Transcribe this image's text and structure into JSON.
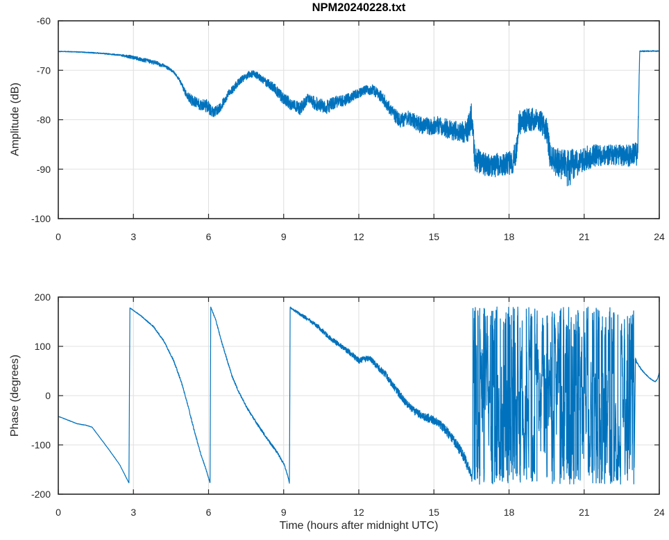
{
  "figure": {
    "title": "NPM20240228.txt"
  },
  "colors": {
    "line": "#0072BD",
    "grid": "#e0e0e0",
    "axis": "#262626",
    "tick_label": "#262626",
    "title": "#000000",
    "background": "#ffffff"
  },
  "chart_data": [
    {
      "type": "line",
      "title": "NPM20240228.txt",
      "xlabel": "",
      "ylabel": "Amplitude (dB)",
      "xlim": [
        0,
        24
      ],
      "ylim": [
        -100,
        -60
      ],
      "xticks": [
        0,
        3,
        6,
        9,
        12,
        15,
        18,
        21,
        24
      ],
      "xtick_labels": [
        "0",
        "3",
        "6",
        "9",
        "12",
        "15",
        "18",
        "21",
        "24"
      ],
      "yticks": [
        -100,
        -90,
        -80,
        -70,
        -60
      ],
      "ytick_labels": [
        "-100",
        "-90",
        "-80",
        "-70",
        "-60"
      ],
      "grid": true,
      "legend": null,
      "x_units": "hours after midnight UTC",
      "series": [
        {
          "name": "amplitude",
          "color": "#0072BD",
          "seed": 982451653,
          "sample_step_hours": 0.006,
          "segments": [
            {
              "kind": "noisy_keys",
              "keys": [
                [
                  0.0,
                  -66.2,
                  0.07
                ],
                [
                  0.6,
                  -66.25,
                  0.07
                ],
                [
                  1.2,
                  -66.4,
                  0.09
                ],
                [
                  1.8,
                  -66.6,
                  0.1
                ],
                [
                  2.4,
                  -66.9,
                  0.15
                ],
                [
                  2.9,
                  -67.3,
                  0.35
                ],
                [
                  3.4,
                  -67.9,
                  0.4
                ],
                [
                  3.9,
                  -68.5,
                  0.45
                ],
                [
                  4.3,
                  -69.3,
                  0.35
                ],
                [
                  4.6,
                  -70.3,
                  0.25
                ],
                [
                  4.85,
                  -72.0,
                  0.3
                ],
                [
                  5.1,
                  -74.8,
                  0.7
                ],
                [
                  5.35,
                  -76.2,
                  1.1
                ],
                [
                  5.65,
                  -76.8,
                  1.2
                ],
                [
                  5.95,
                  -77.2,
                  1.4
                ],
                [
                  6.2,
                  -78.6,
                  1.0
                ],
                [
                  6.45,
                  -77.6,
                  0.9
                ],
                [
                  6.8,
                  -74.8,
                  0.8
                ],
                [
                  7.2,
                  -72.4,
                  0.8
                ],
                [
                  7.6,
                  -70.9,
                  0.7
                ],
                [
                  7.85,
                  -70.7,
                  0.7
                ],
                [
                  8.2,
                  -72.1,
                  0.8
                ],
                [
                  8.6,
                  -73.4,
                  1.0
                ],
                [
                  9.0,
                  -75.8,
                  1.2
                ],
                [
                  9.35,
                  -77.0,
                  1.3
                ],
                [
                  9.65,
                  -77.8,
                  1.3
                ],
                [
                  9.95,
                  -75.9,
                  1.1
                ],
                [
                  10.35,
                  -76.9,
                  1.4
                ],
                [
                  10.75,
                  -77.4,
                  1.4
                ],
                [
                  11.05,
                  -76.4,
                  1.2
                ],
                [
                  11.45,
                  -76.1,
                  1.1
                ],
                [
                  11.85,
                  -74.9,
                  1.0
                ],
                [
                  12.25,
                  -74.1,
                  1.0
                ],
                [
                  12.55,
                  -73.9,
                  1.0
                ],
                [
                  12.95,
                  -75.6,
                  1.2
                ],
                [
                  13.35,
                  -78.6,
                  1.4
                ],
                [
                  13.65,
                  -80.2,
                  1.4
                ],
                [
                  14.05,
                  -79.6,
                  1.5
                ],
                [
                  14.45,
                  -81.1,
                  1.7
                ],
                [
                  14.85,
                  -81.4,
                  1.8
                ],
                [
                  15.25,
                  -81.1,
                  1.9
                ],
                [
                  15.65,
                  -82.1,
                  2.0
                ],
                [
                  16.05,
                  -82.6,
                  2.1
                ],
                [
                  16.35,
                  -82.1,
                  2.4
                ],
                [
                  16.5,
                  -79.8,
                  3.6
                ],
                [
                  16.65,
                  -88.2,
                  2.6
                ],
                [
                  17.1,
                  -89.1,
                  2.4
                ],
                [
                  17.7,
                  -89.2,
                  2.4
                ],
                [
                  18.15,
                  -88.5,
                  2.4
                ],
                [
                  18.28,
                  -86.5,
                  2.6
                ],
                [
                  18.4,
                  -80.6,
                  2.4
                ],
                [
                  18.9,
                  -79.9,
                  2.4
                ],
                [
                  19.25,
                  -80.3,
                  2.4
                ],
                [
                  19.5,
                  -81.8,
                  2.6
                ],
                [
                  19.65,
                  -87.6,
                  3.0
                ],
                [
                  20.05,
                  -89.0,
                  3.0
                ],
                [
                  20.35,
                  -90.2,
                  4.2
                ],
                [
                  20.7,
                  -88.6,
                  2.8
                ],
                [
                  21.0,
                  -87.9,
                  2.6
                ],
                [
                  21.4,
                  -87.3,
                  2.3
                ],
                [
                  21.9,
                  -87.0,
                  2.1
                ],
                [
                  22.4,
                  -87.2,
                  2.1
                ],
                [
                  22.9,
                  -87.2,
                  2.3
                ],
                [
                  23.14,
                  -86.9,
                  2.4
                ],
                [
                  23.18,
                  -75.0,
                  1.0
                ],
                [
                  23.22,
                  -66.15,
                  0.12
                ],
                [
                  24.0,
                  -66.1,
                  0.1
                ]
              ]
            }
          ]
        }
      ]
    },
    {
      "type": "line",
      "title": "",
      "xlabel": "Time (hours after midnight UTC)",
      "ylabel": "Phase (degrees)",
      "xlim": [
        0,
        24
      ],
      "ylim": [
        -200,
        200
      ],
      "xticks": [
        0,
        3,
        6,
        9,
        12,
        15,
        18,
        21,
        24
      ],
      "xtick_labels": [
        "0",
        "3",
        "6",
        "9",
        "12",
        "15",
        "18",
        "21",
        "24"
      ],
      "yticks": [
        -200,
        -100,
        0,
        100,
        200
      ],
      "ytick_labels": [
        "-200",
        "-100",
        "0",
        "100",
        "200"
      ],
      "grid": true,
      "legend": null,
      "x_units": "hours after midnight UTC",
      "series": [
        {
          "name": "phase",
          "color": "#0072BD",
          "seed": 20240228,
          "sample_step_hours": 0.006,
          "segments": [
            {
              "kind": "noisy_keys",
              "keys": [
                [
                  0.0,
                  -42,
                  0.4
                ],
                [
                  0.5,
                  -52,
                  0.4
                ],
                [
                  0.75,
                  -57,
                  0.4
                ],
                [
                  1.1,
                  -60,
                  0.4
                ],
                [
                  1.35,
                  -64,
                  0.4
                ],
                [
                  2.0,
                  -108,
                  0.4
                ],
                [
                  2.45,
                  -140,
                  0.4
                ],
                [
                  2.82,
                  -177,
                  0.4
                ],
                [
                  2.86,
                  178,
                  0.5
                ],
                [
                  3.3,
                  162,
                  0.9
                ],
                [
                  3.8,
                  140,
                  1.3
                ],
                [
                  4.2,
                  112,
                  1.6
                ],
                [
                  4.6,
                  72,
                  1.9
                ],
                [
                  4.9,
                  30,
                  2.0
                ],
                [
                  5.15,
                  -15,
                  2.0
                ],
                [
                  5.45,
                  -75,
                  2.0
                ],
                [
                  5.7,
                  -120,
                  1.8
                ],
                [
                  5.9,
                  -150,
                  1.4
                ],
                [
                  6.06,
                  -177,
                  1.1
                ],
                [
                  6.09,
                  179,
                  1.0
                ],
                [
                  6.28,
                  155,
                  1.5
                ],
                [
                  6.5,
                  113,
                  2.0
                ],
                [
                  6.72,
                  76,
                  2.0
                ],
                [
                  6.95,
                  38,
                  2.0
                ],
                [
                  7.2,
                  8,
                  2.0
                ],
                [
                  7.55,
                  -26,
                  2.2
                ],
                [
                  7.95,
                  -58,
                  2.5
                ],
                [
                  8.35,
                  -88,
                  2.5
                ],
                [
                  8.75,
                  -116,
                  2.5
                ],
                [
                  9.02,
                  -140,
                  2.0
                ],
                [
                  9.16,
                  -162,
                  1.5
                ],
                [
                  9.23,
                  -177,
                  1.2
                ],
                [
                  9.26,
                  179,
                  1.5
                ],
                [
                  9.6,
                  167,
                  3.0
                ],
                [
                  10.0,
                  154,
                  4.0
                ],
                [
                  10.4,
                  139,
                  4.5
                ],
                [
                  10.8,
                  119,
                  5.0
                ],
                [
                  11.2,
                  104,
                  5.0
                ],
                [
                  11.6,
                  89,
                  5.5
                ],
                [
                  12.0,
                  71,
                  6.0
                ],
                [
                  12.25,
                  74,
                  6.0
                ],
                [
                  12.45,
                  76,
                  6.0
                ],
                [
                  12.75,
                  58,
                  6.5
                ],
                [
                  13.05,
                  44,
                  7.0
                ],
                [
                  13.35,
                  22,
                  7.0
                ],
                [
                  13.65,
                  1,
                  7.5
                ],
                [
                  13.95,
                  -18,
                  8.0
                ],
                [
                  14.25,
                  -33,
                  8.0
                ],
                [
                  14.55,
                  -41,
                  8.5
                ],
                [
                  14.85,
                  -47,
                  9.0
                ],
                [
                  15.15,
                  -53,
                  9.0
                ],
                [
                  15.45,
                  -69,
                  10.0
                ],
                [
                  15.75,
                  -87,
                  10.0
                ],
                [
                  16.05,
                  -110,
                  11.0
                ],
                [
                  16.25,
                  -130,
                  11.0
                ],
                [
                  16.42,
                  -152,
                  10.0
                ],
                [
                  16.52,
                  -168,
                  7.0
                ]
              ]
            },
            {
              "kind": "wrapped_walk",
              "t0": 16.55,
              "t1": 23.0,
              "dt": 0.004,
              "base_step": 52,
              "step_var": 46,
              "jump_prob": 0.045,
              "wrap": 180
            },
            {
              "kind": "noisy_keys",
              "keys": [
                [
                  23.05,
                  72,
                  6.0
                ],
                [
                  23.12,
                  66,
                  1.5
                ],
                [
                  23.3,
                  52,
                  1.2
                ],
                [
                  23.5,
                  41,
                  1.0
                ],
                [
                  23.7,
                  32,
                  1.0
                ],
                [
                  23.85,
                  28.5,
                  0.9
                ],
                [
                  23.93,
                  34,
                  0.8
                ],
                [
                  24.0,
                  47,
                  0.8
                ]
              ]
            }
          ]
        }
      ]
    }
  ]
}
